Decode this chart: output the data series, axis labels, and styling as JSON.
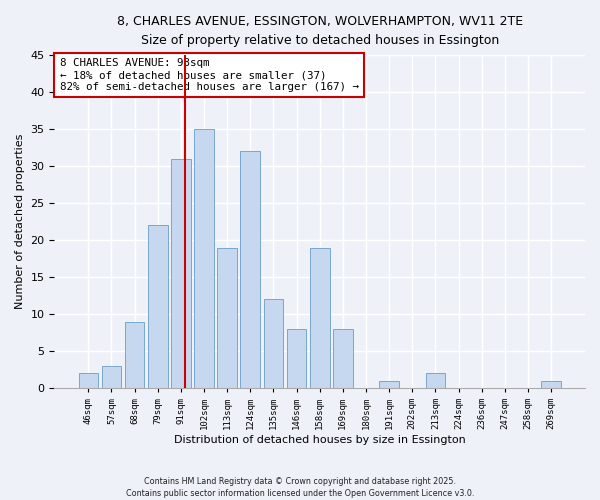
{
  "title": "8, CHARLES AVENUE, ESSINGTON, WOLVERHAMPTON, WV11 2TE",
  "subtitle": "Size of property relative to detached houses in Essington",
  "xlabel": "Distribution of detached houses by size in Essington",
  "ylabel": "Number of detached properties",
  "bin_labels": [
    "46sqm",
    "57sqm",
    "68sqm",
    "79sqm",
    "91sqm",
    "102sqm",
    "113sqm",
    "124sqm",
    "135sqm",
    "146sqm",
    "158sqm",
    "169sqm",
    "180sqm",
    "191sqm",
    "202sqm",
    "213sqm",
    "224sqm",
    "236sqm",
    "247sqm",
    "258sqm",
    "269sqm"
  ],
  "bin_values": [
    2,
    3,
    9,
    22,
    31,
    35,
    19,
    32,
    12,
    8,
    19,
    8,
    0,
    1,
    0,
    2,
    0,
    0,
    0,
    0,
    1
  ],
  "bar_color": "#c5d8f0",
  "bar_edge_color": "#7ba7cc",
  "vline_color": "#cc0000",
  "vline_index": 4.18,
  "annotation_text": "8 CHARLES AVENUE: 93sqm\n← 18% of detached houses are smaller (37)\n82% of semi-detached houses are larger (167) →",
  "annotation_box_color": "#ffffff",
  "annotation_box_edge": "#cc0000",
  "ylim": [
    0,
    45
  ],
  "yticks": [
    0,
    5,
    10,
    15,
    20,
    25,
    30,
    35,
    40,
    45
  ],
  "background_color": "#eef2f8",
  "grid_color": "#ffffff",
  "footer_line1": "Contains HM Land Registry data © Crown copyright and database right 2025.",
  "footer_line2": "Contains public sector information licensed under the Open Government Licence v3.0."
}
